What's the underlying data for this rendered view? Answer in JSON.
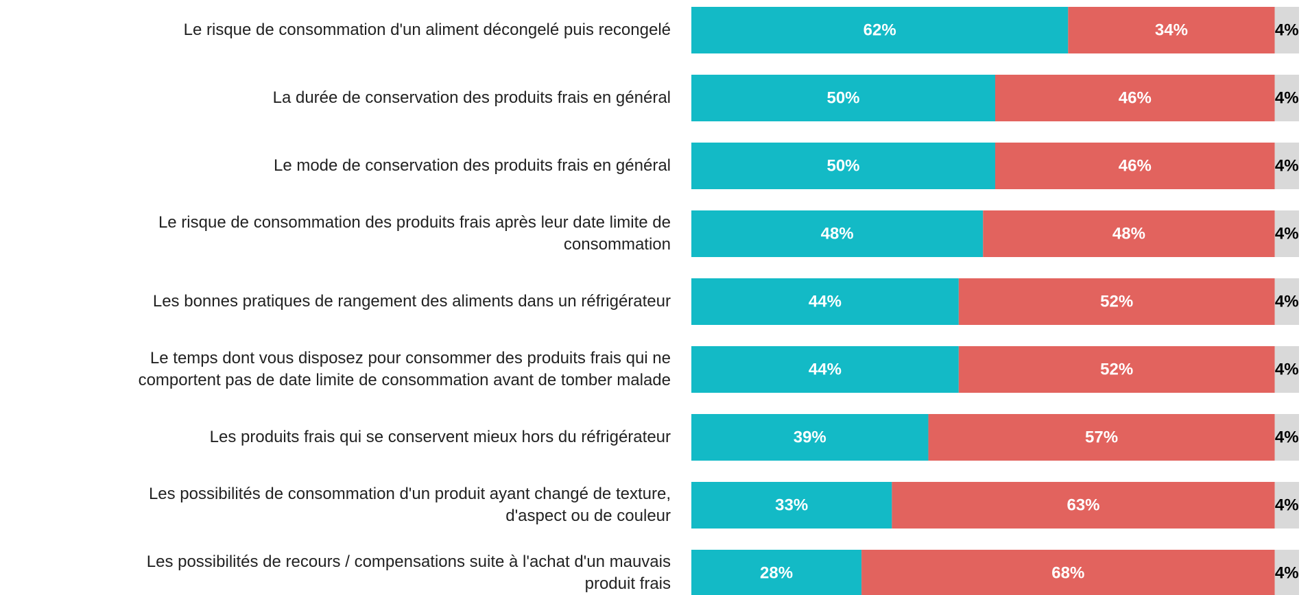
{
  "chart_data": {
    "type": "stacked_bar_horizontal",
    "categories": [
      "Le risque de consommation d'un aliment décongelé puis recongelé",
      "La durée de conservation des produits frais en général",
      "Le mode de conservation des produits frais en général",
      "Le risque de consommation des produits frais après leur date limite de\nconsommation",
      "Les bonnes pratiques de rangement des aliments dans un réfrigérateur",
      "Le temps dont vous disposez pour consommer des produits frais qui ne\ncomportent pas de date limite de consommation avant de tomber malade",
      "Les produits frais qui se conservent mieux hors du réfrigérateur",
      "Les possibilités de consommation d'un produit ayant changé de texture,\nd'aspect ou de couleur",
      "Les possibilités de recours / compensations suite à l'achat d'un mauvais\nproduit frais"
    ],
    "series": [
      {
        "color": "#13bac6",
        "label_color": "#ffffff",
        "values": [
          62,
          50,
          50,
          48,
          44,
          44,
          39,
          33,
          28
        ],
        "value_labels": [
          "62%",
          "50%",
          "50%",
          "48%",
          "44%",
          "44%",
          "39%",
          "33%",
          "28%"
        ]
      },
      {
        "color": "#e2635e",
        "label_color": "#ffffff",
        "values": [
          34,
          46,
          46,
          48,
          52,
          52,
          57,
          63,
          68
        ],
        "value_labels": [
          "34%",
          "46%",
          "46%",
          "48%",
          "52%",
          "52%",
          "57%",
          "63%",
          "68%"
        ]
      },
      {
        "color": "#d9d9d9",
        "label_color": "#000000",
        "values": [
          4,
          4,
          4,
          4,
          4,
          4,
          4,
          4,
          4
        ],
        "value_labels": [
          "4%",
          "4%",
          "4%",
          "4%",
          "4%",
          "4%",
          "4%",
          "4%",
          "4%"
        ]
      }
    ]
  }
}
